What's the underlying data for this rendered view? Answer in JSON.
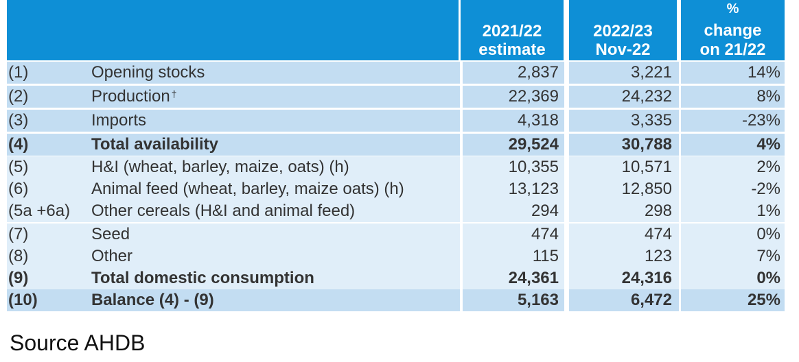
{
  "headers": {
    "col1": [
      "2021/22",
      "estimate"
    ],
    "col2": [
      "2022/23",
      "Nov-22"
    ],
    "col3": [
      "%",
      "change",
      "on 21/22"
    ]
  },
  "rows": [
    {
      "ref": "(1)",
      "label": "Opening stocks",
      "v1": "2,837",
      "v2": "3,221",
      "pct": "14%",
      "bold": false,
      "sup": ""
    },
    {
      "ref": "(2)",
      "label": "Production",
      "v1": "22,369",
      "v2": "24,232",
      "pct": "8%",
      "bold": false,
      "sup": "†"
    },
    {
      "ref": "(3)",
      "label": "Imports",
      "v1": "4,318",
      "v2": "3,335",
      "pct": "-23%",
      "bold": false,
      "sup": ""
    },
    {
      "ref": "(4)",
      "label": "Total availability",
      "v1": "29,524",
      "v2": "30,788",
      "pct": "4%",
      "bold": true,
      "sup": ""
    },
    {
      "ref": "(5)",
      "label": "H&I (wheat, barley, maize, oats) (h)",
      "v1": "10,355",
      "v2": "10,571",
      "pct": "2%",
      "bold": false,
      "sup": ""
    },
    {
      "ref": "(6)",
      "label": "Animal feed (wheat, barley, maize oats) (h)",
      "v1": "13,123",
      "v2": "12,850",
      "pct": "-2%",
      "bold": false,
      "sup": ""
    },
    {
      "ref": "(5a +6a)",
      "label": "Other cereals (H&I and animal feed)",
      "v1": "294",
      "v2": "298",
      "pct": "1%",
      "bold": false,
      "sup": ""
    },
    {
      "ref": "(7)",
      "label": "Seed",
      "v1": "474",
      "v2": "474",
      "pct": "0%",
      "bold": false,
      "sup": ""
    },
    {
      "ref": "(8)",
      "label": "Other",
      "v1": "115",
      "v2": "123",
      "pct": "7%",
      "bold": false,
      "sup": ""
    },
    {
      "ref": "(9)",
      "label": "Total domestic consumption",
      "v1": "24,361",
      "v2": "24,316",
      "pct": "0%",
      "bold": true,
      "sup": ""
    },
    {
      "ref": "(10)",
      "label": "Balance (4) - (9)",
      "v1": "5,163",
      "v2": "6,472",
      "pct": "25%",
      "bold": true,
      "sup": ""
    }
  ],
  "source": "Source AHDB",
  "colors": {
    "header": "#0e8fd6",
    "supply_band": "#c3ddf2",
    "use_band": "#e0eef9",
    "balance_band": "#c3ddf2"
  }
}
